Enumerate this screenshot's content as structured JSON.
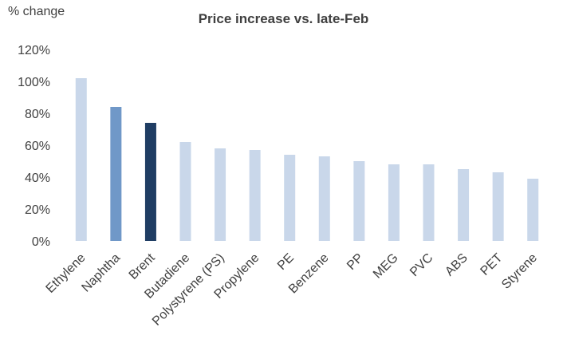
{
  "unit_label": "% change",
  "chart_data": {
    "type": "bar",
    "title": "Price increase vs. late-Feb",
    "xlabel": "",
    "ylabel": "% change",
    "categories": [
      "Ethylene",
      "Naphtha",
      "Brent",
      "Butadiene",
      "Polystyrene (PS)",
      "Propylene",
      "PE",
      "Benzene",
      "PP",
      "MEG",
      "PVC",
      "ABS",
      "PET",
      "Styrene"
    ],
    "values": [
      102,
      84,
      74,
      62,
      58,
      57,
      54,
      53,
      50,
      48,
      48,
      45,
      43,
      39
    ],
    "ylim": [
      0,
      120
    ],
    "yticks": [
      0,
      20,
      40,
      60,
      80,
      100,
      120
    ],
    "ytick_labels": [
      "0%",
      "20%",
      "40%",
      "60%",
      "80%",
      "100%",
      "120%"
    ],
    "grid": false,
    "legend": "none",
    "colors": {
      "default": "#c9d7ea",
      "Naphtha": "#7098c8",
      "Brent": "#1f3d63"
    }
  }
}
